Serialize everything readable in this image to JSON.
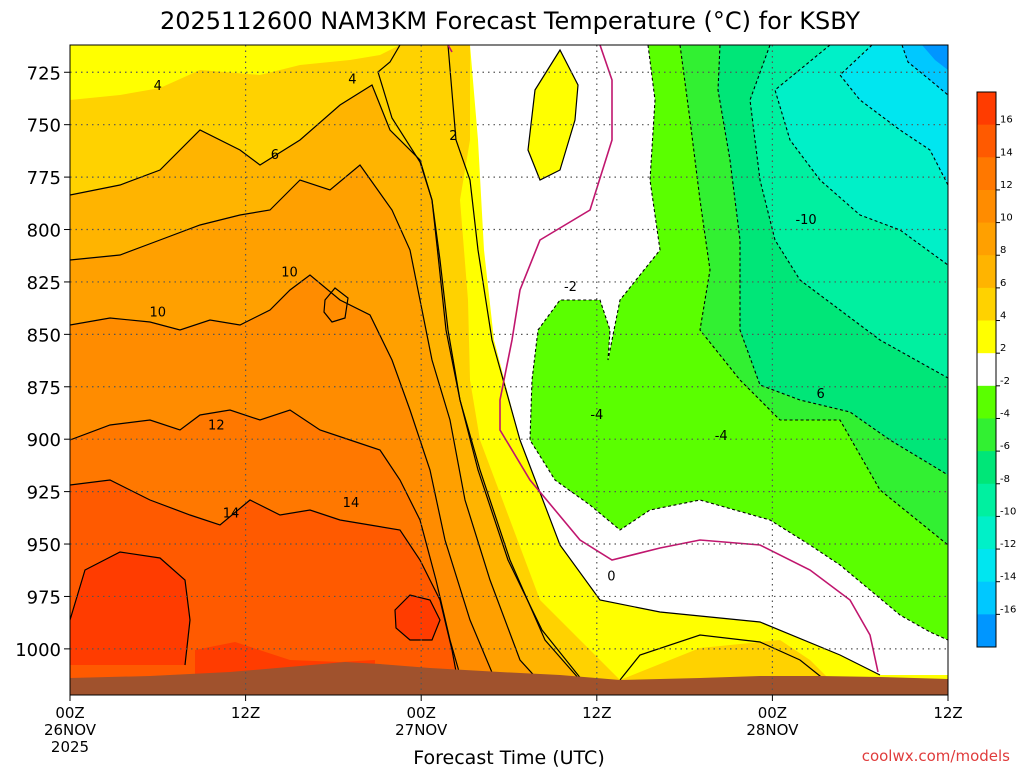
{
  "chart_data": {
    "type": "heatmap",
    "title": "2025112600 NAM3KM Forecast Temperature (°C) for KSBY",
    "xlabel": "Forecast Time (UTC)",
    "ylabel": "",
    "credit": "coolwx.com/models",
    "x_range_hours": [
      0,
      60
    ],
    "y_range_hpa": [
      712,
      1022
    ],
    "y_ticks": [
      725,
      750,
      775,
      800,
      825,
      850,
      875,
      900,
      925,
      950,
      975,
      1000
    ],
    "x_ticks": [
      {
        "hour": 0,
        "line1": "00Z",
        "line2": "26NOV",
        "line3": "2025"
      },
      {
        "hour": 12,
        "line1": "12Z",
        "line2": "",
        "line3": ""
      },
      {
        "hour": 24,
        "line1": "00Z",
        "line2": "27NOV",
        "line3": ""
      },
      {
        "hour": 36,
        "line1": "12Z",
        "line2": "",
        "line3": ""
      },
      {
        "hour": 48,
        "line1": "00Z",
        "line2": "28NOV",
        "line3": ""
      },
      {
        "hour": 60,
        "line1": "12Z",
        "line2": "",
        "line3": ""
      }
    ],
    "colorbar": {
      "bins": [
        {
          "lo": 16,
          "hi": 18,
          "color": "#ff3c00"
        },
        {
          "lo": 14,
          "hi": 16,
          "color": "#ff5a00"
        },
        {
          "lo": 12,
          "hi": 14,
          "color": "#ff7800"
        },
        {
          "lo": 10,
          "hi": 12,
          "color": "#ff8c00"
        },
        {
          "lo": 8,
          "hi": 10,
          "color": "#ffa000"
        },
        {
          "lo": 6,
          "hi": 8,
          "color": "#ffb400"
        },
        {
          "lo": 4,
          "hi": 6,
          "color": "#ffd200"
        },
        {
          "lo": 2,
          "hi": 4,
          "color": "#ffff00"
        },
        {
          "lo": -2,
          "hi": 2,
          "color": "#ffffff"
        },
        {
          "lo": -4,
          "hi": -2,
          "color": "#5aff00"
        },
        {
          "lo": -6,
          "hi": -4,
          "color": "#32f032"
        },
        {
          "lo": -8,
          "hi": -6,
          "color": "#00e678"
        },
        {
          "lo": -10,
          "hi": -8,
          "color": "#00f0a0"
        },
        {
          "lo": -12,
          "hi": -10,
          "color": "#00f0c8"
        },
        {
          "lo": -14,
          "hi": -12,
          "color": "#00e6f0"
        },
        {
          "lo": -16,
          "hi": -14,
          "color": "#00c8ff"
        },
        {
          "lo": -18,
          "hi": -16,
          "color": "#0096ff"
        }
      ],
      "tick_labels": [
        "16",
        "14",
        "12",
        "10",
        "8",
        "6",
        "4",
        "2",
        "-2",
        "-4",
        "-6",
        "-8",
        "-10",
        "-12",
        "-14",
        "-16"
      ]
    },
    "contour_labels": [
      {
        "text": "4",
        "hour": 6.0,
        "hpa": 731
      },
      {
        "text": "4",
        "hour": 19.3,
        "hpa": 728
      },
      {
        "text": "6",
        "hour": 14.0,
        "hpa": 764
      },
      {
        "text": "2",
        "hour": 26.2,
        "hpa": 755
      },
      {
        "text": "10",
        "hour": 15.0,
        "hpa": 820
      },
      {
        "text": "10",
        "hour": 6.0,
        "hpa": 839
      },
      {
        "text": "12",
        "hour": 10.0,
        "hpa": 893
      },
      {
        "text": "14",
        "hour": 11.0,
        "hpa": 935
      },
      {
        "text": "14",
        "hour": 19.2,
        "hpa": 930
      },
      {
        "text": "-2",
        "hour": 34.2,
        "hpa": 827
      },
      {
        "text": "-4",
        "hour": 36.0,
        "hpa": 888
      },
      {
        "text": "-4",
        "hour": 44.5,
        "hpa": 898
      },
      {
        "text": "-10",
        "hour": 50.3,
        "hpa": 795
      },
      {
        "text": "6",
        "hour": 51.3,
        "hpa": 878
      },
      {
        "text": "0",
        "hour": 37.0,
        "hpa": 965
      }
    ]
  }
}
